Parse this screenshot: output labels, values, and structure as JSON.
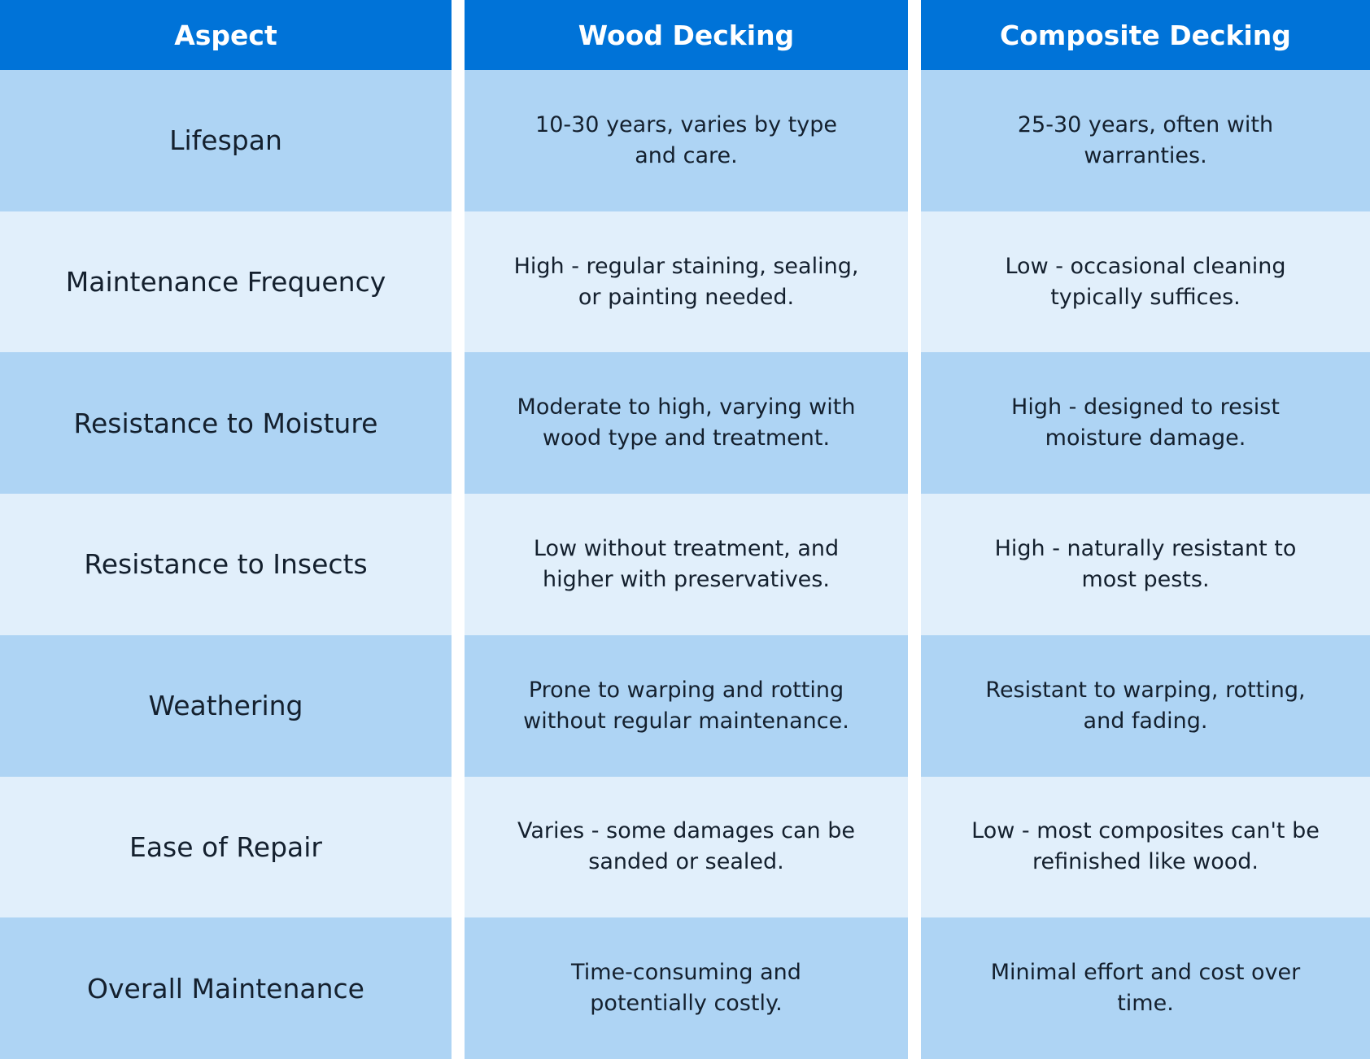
{
  "table": {
    "columns": [
      "Aspect",
      "Wood Decking",
      "Composite Decking"
    ],
    "rows": [
      [
        "Lifespan",
        "10-30 years, varies by type and care.",
        "25-30 years, often with warranties."
      ],
      [
        "Maintenance Frequency",
        "High - regular staining, sealing, or painting needed.",
        "Low - occasional cleaning typically suffices."
      ],
      [
        "Resistance to Moisture",
        "Moderate to high, varying with wood type and treatment.",
        "High - designed to resist moisture damage."
      ],
      [
        "Resistance to Insects",
        "Low without treatment, and higher with preservatives.",
        "High - naturally resistant to most pests."
      ],
      [
        "Weathering",
        "Prone to warping and rotting without regular maintenance.",
        "Resistant to warping, rotting, and fading."
      ],
      [
        "Ease of Repair",
        "Varies - some damages can be sanded or sealed.",
        "Low - most composites can't be refinished like wood."
      ],
      [
        "Overall Maintenance",
        "Time-consuming and potentially costly.",
        "Minimal effort and cost over time."
      ]
    ]
  }
}
